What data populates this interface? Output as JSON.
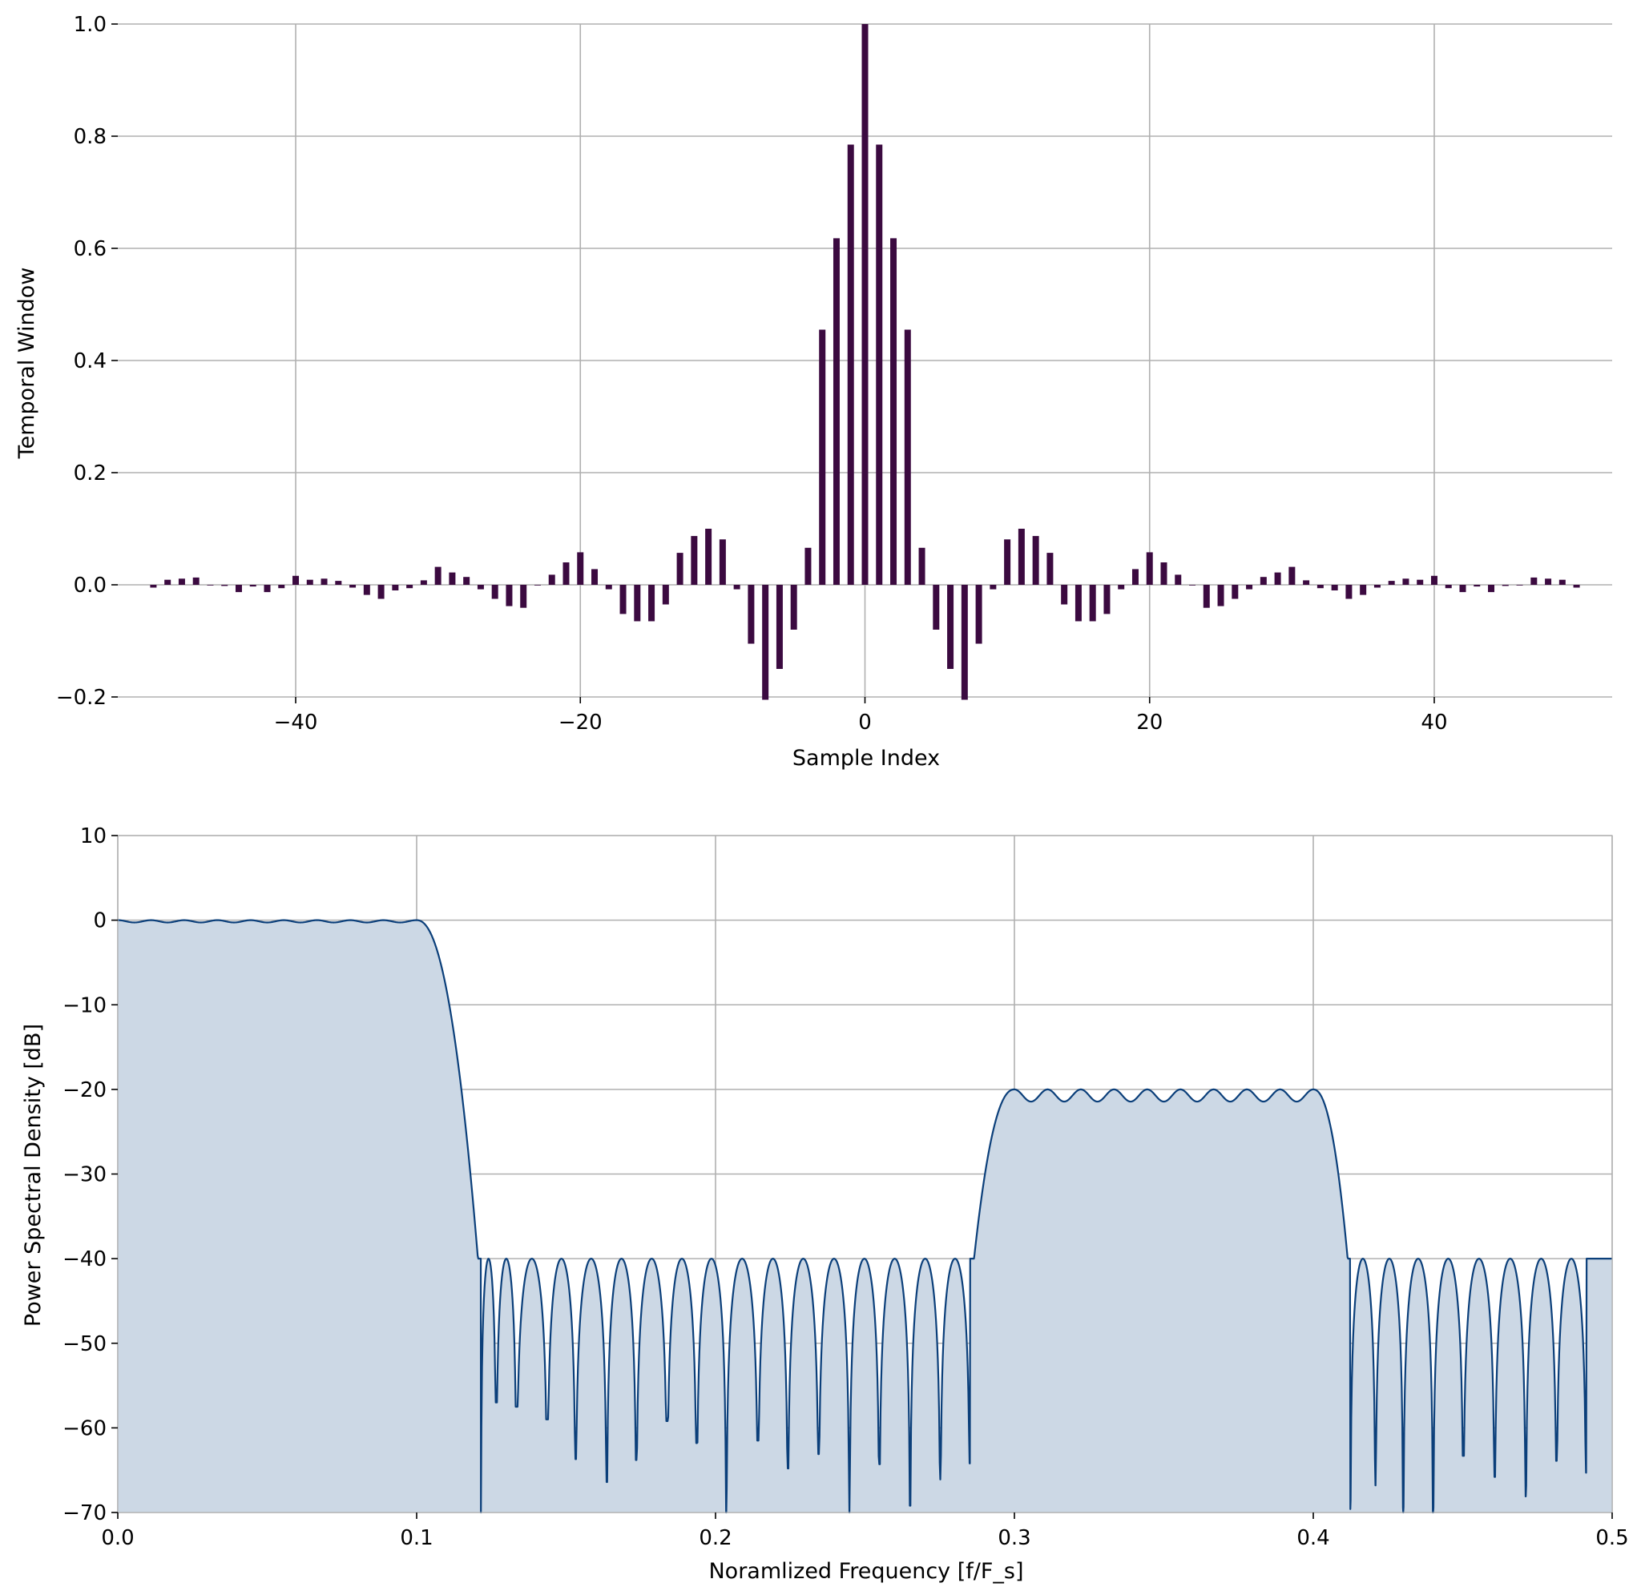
{
  "chart_data": [
    {
      "type": "bar",
      "xlabel": "Sample Index",
      "ylabel": "Temporal Window",
      "xlim": [
        -52.5,
        52.5
      ],
      "ylim": [
        -0.2,
        1.0
      ],
      "xticks": [
        -40,
        -20,
        0,
        20,
        40
      ],
      "xtick_labels": [
        "−40",
        "−20",
        "0",
        "20",
        "40"
      ],
      "yticks": [
        -0.2,
        0.0,
        0.2,
        0.4,
        0.6,
        0.8,
        1.0
      ],
      "ytick_labels": [
        "−0.2",
        "0.0",
        "0.2",
        "0.4",
        "0.6",
        "0.8",
        "1.0"
      ],
      "grid": true,
      "bar_color": "#3b0a40",
      "x": [
        -50,
        -49,
        -48,
        -47,
        -46,
        -45,
        -44,
        -43,
        -42,
        -41,
        -40,
        -39,
        -38,
        -37,
        -36,
        -35,
        -34,
        -33,
        -32,
        -31,
        -30,
        -29,
        -28,
        -27,
        -26,
        -25,
        -24,
        -23,
        -22,
        -21,
        -20,
        -19,
        -18,
        -17,
        -16,
        -15,
        -14,
        -13,
        -12,
        -11,
        -10,
        -9,
        -8,
        -7,
        -6,
        -5,
        -4,
        -3,
        -2,
        -1,
        0,
        1,
        2,
        3,
        4,
        5,
        6,
        7,
        8,
        9,
        10,
        11,
        12,
        13,
        14,
        15,
        16,
        17,
        18,
        19,
        20,
        21,
        22,
        23,
        24,
        25,
        26,
        27,
        28,
        29,
        30,
        31,
        32,
        33,
        34,
        35,
        36,
        37,
        38,
        39,
        40,
        41,
        42,
        43,
        44,
        45,
        46,
        47,
        48,
        49,
        50
      ],
      "values": [
        -0.005,
        0.009,
        0.011,
        0.013,
        0.0,
        -0.002,
        -0.013,
        -0.003,
        -0.013,
        -0.006,
        0.016,
        0.009,
        0.011,
        0.007,
        -0.005,
        -0.018,
        -0.025,
        -0.01,
        -0.006,
        0.008,
        0.032,
        0.022,
        0.014,
        -0.008,
        -0.025,
        -0.038,
        -0.041,
        0.0,
        0.018,
        0.04,
        0.058,
        0.028,
        -0.008,
        -0.052,
        -0.065,
        -0.065,
        -0.035,
        0.057,
        0.087,
        0.1,
        0.081,
        -0.008,
        -0.105,
        -0.205,
        -0.15,
        -0.08,
        0.066,
        0.455,
        0.618,
        0.785,
        1.0,
        0.785,
        0.618,
        0.455,
        0.066,
        -0.08,
        -0.15,
        -0.205,
        -0.105,
        -0.008,
        0.081,
        0.1,
        0.087,
        0.057,
        -0.035,
        -0.065,
        -0.065,
        -0.052,
        -0.008,
        0.028,
        0.058,
        0.04,
        0.018,
        0.0,
        -0.041,
        -0.038,
        -0.025,
        -0.008,
        0.014,
        0.022,
        0.032,
        0.008,
        -0.006,
        -0.01,
        -0.025,
        -0.018,
        -0.005,
        0.007,
        0.011,
        0.009,
        0.016,
        -0.006,
        -0.013,
        -0.003,
        -0.013,
        -0.002,
        0.0,
        0.013,
        0.011,
        0.009,
        -0.005
      ]
    },
    {
      "type": "area",
      "xlabel": "Noramlized Frequency [f/F_s]",
      "ylabel": "Power Spectral Density [dB]",
      "xlim": [
        0.0,
        0.5
      ],
      "ylim": [
        -70,
        10
      ],
      "xticks": [
        0.0,
        0.1,
        0.2,
        0.3,
        0.4,
        0.5
      ],
      "xtick_labels": [
        "0.0",
        "0.1",
        "0.2",
        "0.3",
        "0.4",
        "0.5"
      ],
      "yticks": [
        10,
        0,
        -10,
        -20,
        -30,
        -40,
        -50,
        -60,
        -70
      ],
      "ytick_labels": [
        "10",
        "0",
        "−10",
        "−20",
        "−30",
        "−40",
        "−50",
        "−60",
        "−70"
      ],
      "grid": true,
      "line_color": "#0b3f7a",
      "fill_color": "#ccd8e5",
      "passbands": [
        {
          "from": 0.0,
          "to": 0.1,
          "level_db": 0,
          "ripple_db": 0.3
        },
        {
          "from": 0.3,
          "to": 0.4,
          "level_db": -20,
          "ripple_db": 1.6
        }
      ],
      "stopband_level_db": -40,
      "transition_bands": [
        [
          0.1,
          0.12
        ],
        [
          0.29,
          0.3
        ],
        [
          0.4,
          0.41
        ]
      ],
      "stopband_nulls": [
        {
          "x": 0.1215,
          "depth_db": -70
        },
        {
          "x": 0.1266,
          "depth_db": -57
        },
        {
          "x": 0.1334,
          "depth_db": -57.5
        },
        {
          "x": 0.1437,
          "depth_db": -59
        },
        {
          "x": 0.1532,
          "depth_db": -63.7
        },
        {
          "x": 0.1636,
          "depth_db": -66.4
        },
        {
          "x": 0.1735,
          "depth_db": -63.8
        },
        {
          "x": 0.1838,
          "depth_db": -59.2
        },
        {
          "x": 0.1937,
          "depth_db": -61.8
        },
        {
          "x": 0.2036,
          "depth_db": -70
        },
        {
          "x": 0.2142,
          "depth_db": -61.5
        },
        {
          "x": 0.2242,
          "depth_db": -64.8
        },
        {
          "x": 0.2345,
          "depth_db": -63.1
        },
        {
          "x": 0.2448,
          "depth_db": -70
        },
        {
          "x": 0.2548,
          "depth_db": -64.3
        },
        {
          "x": 0.2651,
          "depth_db": -69.2
        },
        {
          "x": 0.2752,
          "depth_db": -66.1
        },
        {
          "x": 0.2851,
          "depth_db": -64.2
        },
        {
          "x": 0.4124,
          "depth_db": -69.6
        },
        {
          "x": 0.4208,
          "depth_db": -66.8
        },
        {
          "x": 0.4301,
          "depth_db": -70
        },
        {
          "x": 0.4401,
          "depth_db": -70
        },
        {
          "x": 0.4502,
          "depth_db": -63.3
        },
        {
          "x": 0.4607,
          "depth_db": -65.8
        },
        {
          "x": 0.4711,
          "depth_db": -68.1
        },
        {
          "x": 0.4814,
          "depth_db": -63.9
        },
        {
          "x": 0.4913,
          "depth_db": -65.3
        }
      ]
    }
  ]
}
